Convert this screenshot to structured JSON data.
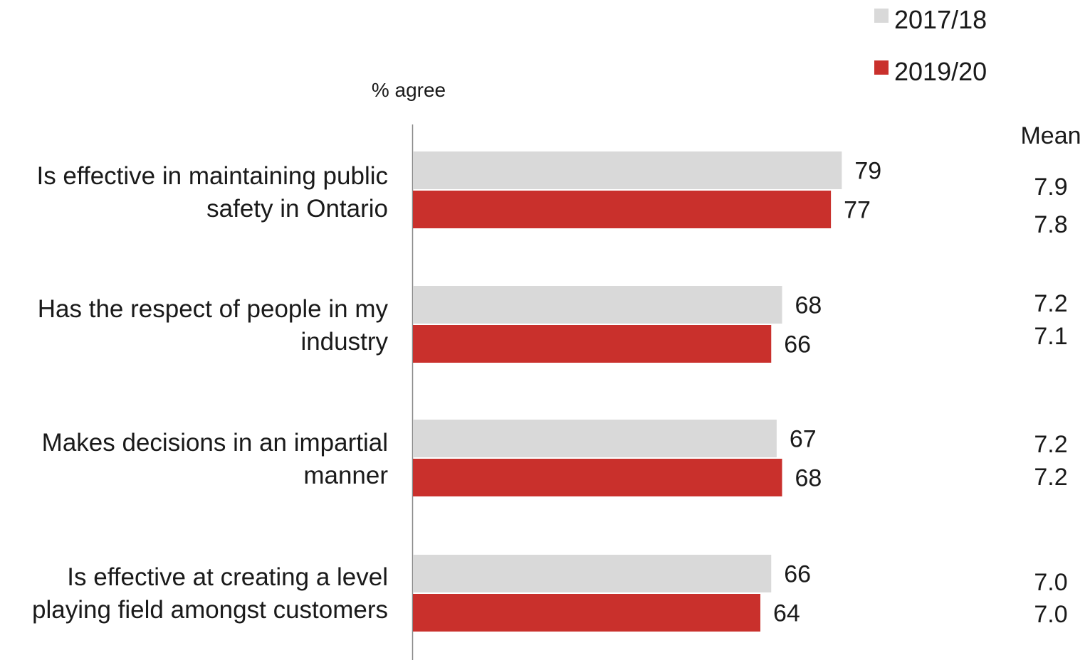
{
  "chart_data": {
    "type": "bar",
    "orientation": "horizontal",
    "axis_note": "% agree",
    "mean_header": "Mean",
    "xlim": [
      0,
      100
    ],
    "legend_position": "top-right",
    "grid": false,
    "categories": [
      [
        "Is effective in maintaining public",
        "safety in Ontario"
      ],
      [
        "Has the respect of people in my",
        "industry"
      ],
      [
        "Makes decisions in an impartial",
        "manner"
      ],
      [
        "Is effective at creating a level",
        "playing field amongst customers"
      ]
    ],
    "series": [
      {
        "name": "2017/18",
        "color": "#d9d9d9",
        "values": [
          79,
          68,
          67,
          66
        ],
        "labels": [
          "79",
          "68",
          "67",
          "66"
        ],
        "means": [
          "7.9",
          "7.2",
          "7.2",
          "7.0"
        ]
      },
      {
        "name": "2019/20",
        "color": "#c9302c",
        "values": [
          77,
          66,
          68,
          64
        ],
        "labels": [
          "77",
          "66",
          "68",
          "64"
        ],
        "means": [
          "7.8",
          "7.1",
          "7.2",
          "7.0"
        ]
      }
    ]
  }
}
